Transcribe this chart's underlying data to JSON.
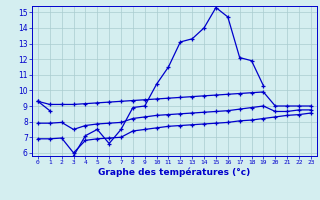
{
  "xlabel": "Graphe des températures (°c)",
  "bg_color": "#d4eef0",
  "grid_color": "#aaccd0",
  "line_color": "#0000cc",
  "xmin": 0,
  "xmax": 23,
  "ymin": 6,
  "ymax": 15,
  "hours": [
    0,
    1,
    2,
    3,
    4,
    5,
    6,
    7,
    8,
    9,
    10,
    11,
    12,
    13,
    14,
    15,
    16,
    17,
    18,
    19,
    20,
    21,
    22,
    23
  ],
  "temp_main": [
    9.3,
    8.7,
    null,
    5.8,
    7.1,
    7.5,
    6.6,
    7.5,
    8.9,
    9.0,
    10.4,
    11.5,
    13.1,
    13.3,
    14.0,
    15.3,
    14.7,
    12.1,
    11.9,
    10.3,
    null,
    null,
    null,
    null
  ],
  "line_upper": [
    9.3,
    9.1,
    9.1,
    9.1,
    9.15,
    9.2,
    9.25,
    9.3,
    9.35,
    9.4,
    9.45,
    9.5,
    9.55,
    9.6,
    9.65,
    9.7,
    9.75,
    9.8,
    9.85,
    9.9,
    9.0,
    9.0,
    9.0,
    9.0
  ],
  "line_lower": [
    6.9,
    6.9,
    6.95,
    6.0,
    6.8,
    6.9,
    6.95,
    7.0,
    7.4,
    7.5,
    7.6,
    7.7,
    7.75,
    7.8,
    7.85,
    7.9,
    7.95,
    8.05,
    8.1,
    8.2,
    8.3,
    8.4,
    8.45,
    8.55
  ],
  "line_mid": [
    7.9,
    7.9,
    7.95,
    7.5,
    7.75,
    7.85,
    7.9,
    7.95,
    8.2,
    8.3,
    8.4,
    8.45,
    8.5,
    8.55,
    8.6,
    8.65,
    8.7,
    8.8,
    8.9,
    9.0,
    8.65,
    8.65,
    8.75,
    8.75
  ]
}
